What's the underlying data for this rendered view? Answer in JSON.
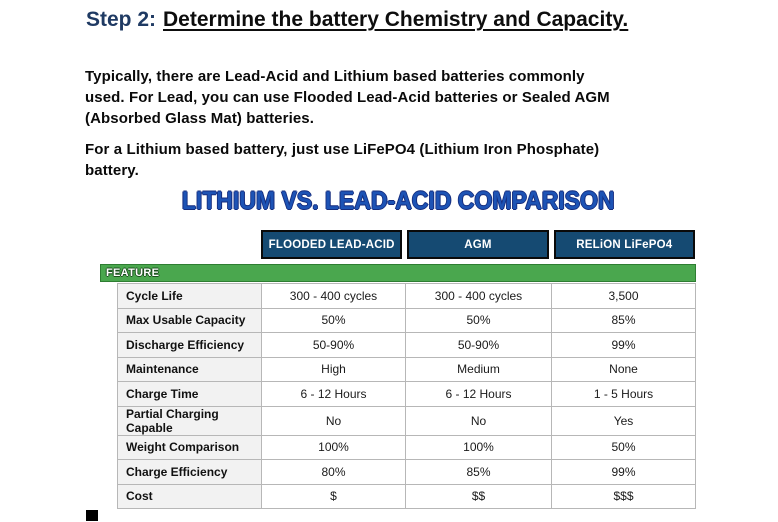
{
  "page": {
    "heading": {
      "prefix": "Step 2:",
      "title": "Determine the battery Chemistry and Capacity."
    },
    "paragraphs": {
      "p1": "Typically, there are Lead-Acid and Lithium based batteries commonly\nused. For Lead, you can use Flooded Lead-Acid batteries or Sealed AGM\n(Absorbed Glass Mat) batteries.",
      "p2": "For a Lithium based battery, just use LiFePO4 (Lithium Iron Phosphate)\nbattery."
    }
  },
  "comparison": {
    "title": "LITHIUM VS. LEAD-ACID COMPARISON",
    "feature_label": "FEATURE",
    "columns": [
      "FLOODED LEAD-ACID",
      "AGM",
      "RELiON LiFePO4"
    ],
    "rows": [
      {
        "feature": "Cycle Life",
        "values": [
          "300 - 400 cycles",
          "300 - 400 cycles",
          "3,500"
        ]
      },
      {
        "feature": "Max Usable Capacity",
        "values": [
          "50%",
          "50%",
          "85%"
        ]
      },
      {
        "feature": "Discharge Efficiency",
        "values": [
          "50-90%",
          "50-90%",
          "99%"
        ]
      },
      {
        "feature": "Maintenance",
        "values": [
          "High",
          "Medium",
          "None"
        ]
      },
      {
        "feature": "Charge Time",
        "values": [
          "6 - 12 Hours",
          "6 - 12 Hours",
          "1 - 5 Hours"
        ]
      },
      {
        "feature": "Partial Charging Capable",
        "values": [
          "No",
          "No",
          "Yes"
        ]
      },
      {
        "feature": "Weight Comparison",
        "values": [
          "100%",
          "100%",
          "50%"
        ]
      },
      {
        "feature": "Charge Efficiency",
        "values": [
          "80%",
          "85%",
          "99%"
        ]
      },
      {
        "feature": "Cost",
        "values": [
          "$",
          "$$",
          "$$$"
        ]
      }
    ]
  },
  "colors": {
    "step_prefix_blue": "#1f3a63",
    "title_blue": "#1d53b5",
    "title_outline_navy": "#162d7e",
    "header_cell_navy": "#154a72",
    "feature_bar_green": "#4aa74e",
    "feature_cell_gray": "#f2f2f2",
    "grid_border_gray": "#b7b7b7"
  }
}
